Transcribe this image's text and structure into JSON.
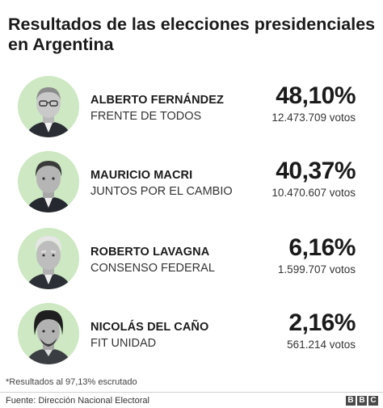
{
  "title": "Resultados de las elecciones presidenciales en Argentina",
  "candidates": [
    {
      "name": "ALBERTO FERNÁNDEZ",
      "party": "FRENTE DE TODOS",
      "percent": "48,10%",
      "votes": "12.473.709 votos"
    },
    {
      "name": "MAURICIO MACRI",
      "party": "JUNTOS POR EL CAMBIO",
      "percent": "40,37%",
      "votes": "10.470.607 votos"
    },
    {
      "name": "ROBERTO LAVAGNA",
      "party": "CONSENSO FEDERAL",
      "percent": "6,16%",
      "votes": "1.599.707 votos"
    },
    {
      "name": "NICOLÁS DEL CAÑO",
      "party": "FIT UNIDAD",
      "percent": "2,16%",
      "votes": "561.214 votos"
    }
  ],
  "footnote": "*Resultados al 97,13% escrutado",
  "source": "Fuente: Dirección Nacional Electoral",
  "logo": {
    "letters": [
      "B",
      "B",
      "C"
    ]
  },
  "colors": {
    "avatar_background": "#cde8c2",
    "logo_block": "#4a4a4a"
  }
}
